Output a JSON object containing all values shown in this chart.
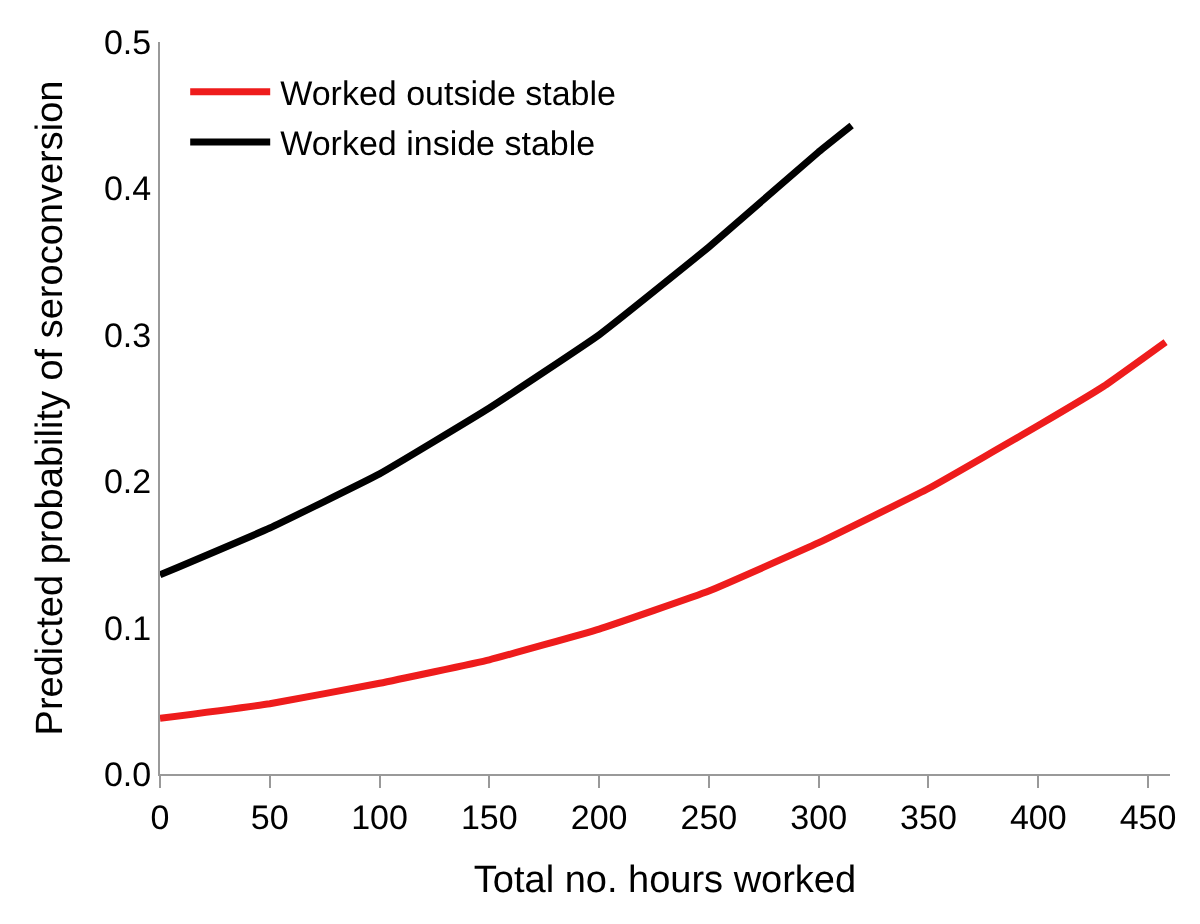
{
  "chart_data": {
    "type": "line",
    "xlabel": "Total no. hours worked",
    "ylabel": "Predicted probability of seroconversion",
    "xlim": [
      0,
      460
    ],
    "xticks": [
      0,
      50,
      100,
      150,
      200,
      250,
      300,
      350,
      400,
      450
    ],
    "ylim": [
      0,
      0.5
    ],
    "yticks": [
      {
        "value": 0,
        "label": "0.0"
      },
      0.1,
      0.2,
      0.3,
      0.4,
      0.5
    ],
    "legend": "top left",
    "marker": "none",
    "line_style": "solid",
    "series": [
      {
        "name": "Worked outside stable",
        "color": "#ee1c1c",
        "x": [
          0,
          50,
          100,
          150,
          200,
          250,
          300,
          350,
          400,
          430,
          458
        ],
        "values": [
          0.038,
          0.048,
          0.062,
          0.078,
          0.099,
          0.125,
          0.158,
          0.195,
          0.238,
          0.265,
          0.295
        ]
      },
      {
        "name": "Worked inside stable",
        "color": "#000000",
        "x": [
          0,
          50,
          100,
          150,
          200,
          250,
          300,
          315
        ],
        "values": [
          0.136,
          0.168,
          0.205,
          0.25,
          0.3,
          0.36,
          0.425,
          0.443
        ]
      }
    ]
  }
}
